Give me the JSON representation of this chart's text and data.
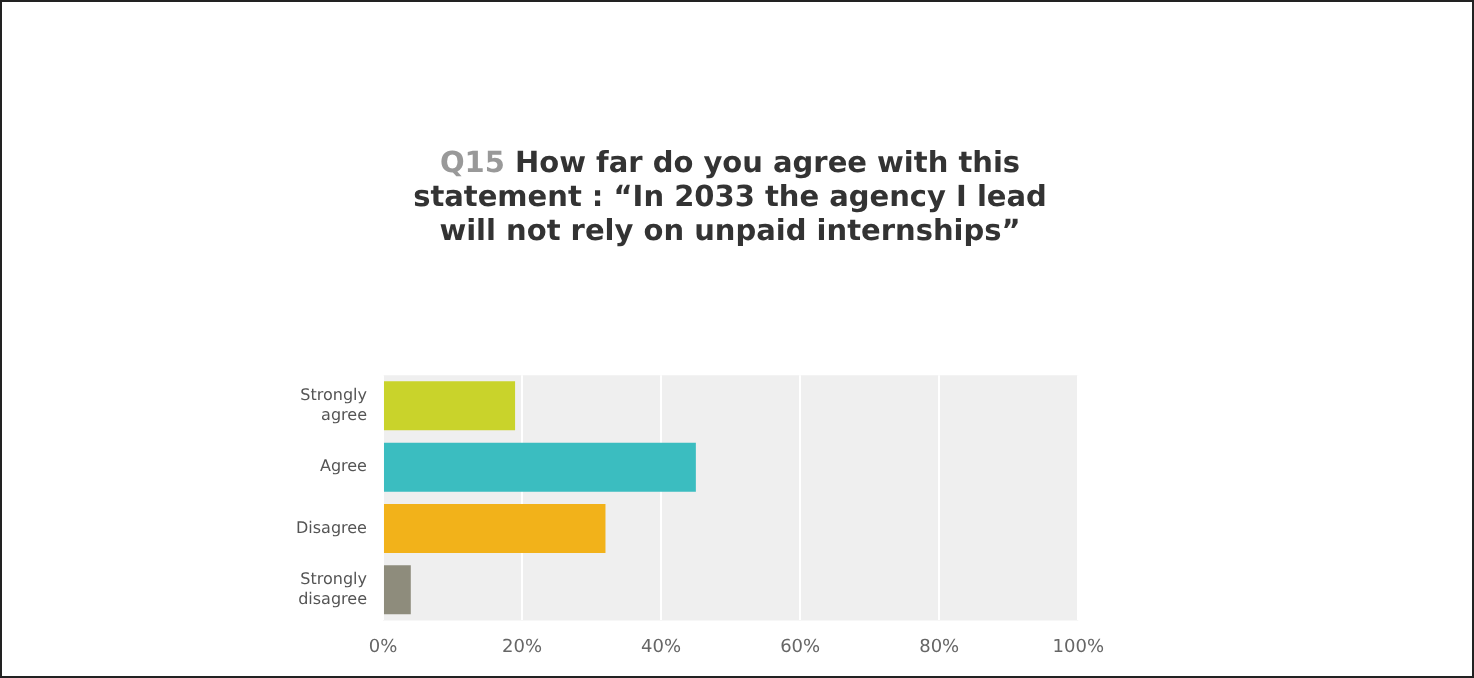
{
  "chart_data": {
    "type": "bar",
    "orientation": "horizontal",
    "title": "Q15 How far do you agree with this statement : “In 2033 the agency I lead will not rely on unpaid internships”",
    "categories": [
      "Strongly agree",
      "Agree",
      "Disagree",
      "Strongly disagree"
    ],
    "values": [
      19,
      45,
      32,
      4
    ],
    "colors": [
      "#c9d32b",
      "#3bbdc0",
      "#f2b21a",
      "#8e8c7c"
    ],
    "xlim": [
      0,
      100
    ],
    "xticks": [
      {
        "value": 0,
        "label": "0%"
      },
      {
        "value": 20,
        "label": "20%"
      },
      {
        "value": 40,
        "label": "40%"
      },
      {
        "value": 60,
        "label": "60%"
      },
      {
        "value": 80,
        "label": "80%"
      },
      {
        "value": 100,
        "label": "100%"
      }
    ],
    "grid": "x",
    "legend": false
  }
}
